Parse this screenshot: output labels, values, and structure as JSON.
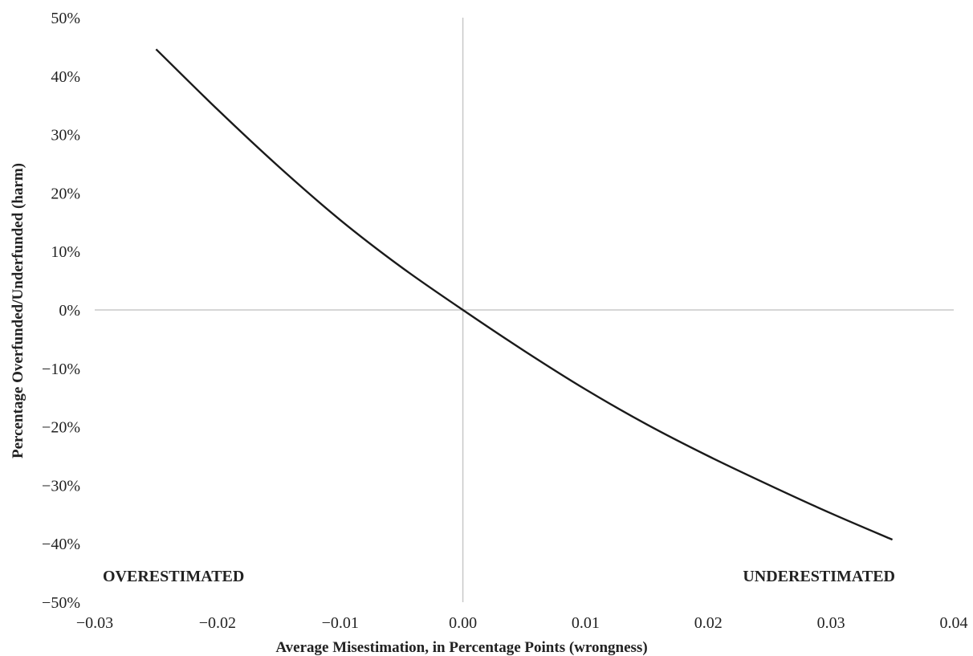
{
  "chart_data": {
    "type": "line",
    "title": "",
    "xlabel": "Average Misestimation, in Percentage Points (wrongness)",
    "ylabel": "Percentage Overfunded/Underfunded (harm)",
    "xlim": [
      -0.03,
      0.04
    ],
    "ylim": [
      -0.5,
      0.5
    ],
    "x_ticks": [
      -0.03,
      -0.02,
      -0.01,
      0.0,
      0.01,
      0.02,
      0.03,
      0.04
    ],
    "x_tick_labels": [
      "−0.03",
      "−0.02",
      "−0.01",
      "0.00",
      "0.01",
      "0.02",
      "0.03",
      "0.04"
    ],
    "y_ticks": [
      0.5,
      0.4,
      0.3,
      0.2,
      0.1,
      0.0,
      -0.1,
      -0.2,
      -0.3,
      -0.4,
      -0.5
    ],
    "y_tick_labels": [
      "50%",
      "40%",
      "30%",
      "20%",
      "10%",
      "0%",
      "−10%",
      "−20%",
      "−30%",
      "−40%",
      "−50%"
    ],
    "grid": false,
    "zero_lines": true,
    "annotations": [
      {
        "text": "OVERESTIMATED"
      },
      {
        "text": "UNDERESTIMATED"
      }
    ],
    "series": [
      {
        "color": "#1a1a1a",
        "x": [
          -0.025,
          -0.02,
          -0.015,
          -0.01,
          -0.005,
          0.0,
          0.005,
          0.01,
          0.015,
          0.02,
          0.025,
          0.03,
          0.035
        ],
        "y": [
          0.446,
          0.343,
          0.245,
          0.154,
          0.073,
          0.0,
          -0.07,
          -0.136,
          -0.196,
          -0.25,
          -0.3,
          -0.348,
          -0.393
        ]
      }
    ],
    "colors": {
      "zero_line": "#c8c8c8",
      "text": "#222222"
    }
  }
}
